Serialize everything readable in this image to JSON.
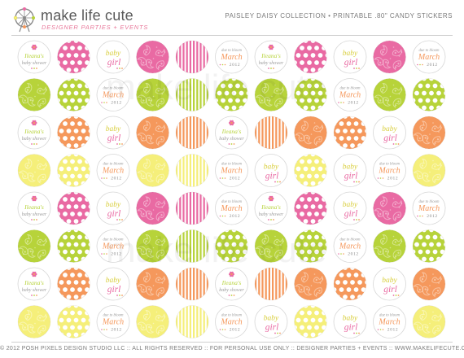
{
  "header": {
    "brand": "make life cute",
    "brand_tagline": "DESIGNER PARTIES + EVENTS",
    "collection_title": "PAISLEY DAISY COLLECTION • PRINTABLE .80\" CANDY STICKERS"
  },
  "sticker_text": {
    "name_line1": "Ileana's",
    "name_line2": "baby shower",
    "baby": "baby",
    "girl": "girl",
    "due": "due to bloom",
    "month": "March",
    "year": "2012"
  },
  "colors": {
    "pink": "#e96aa3",
    "lime": "#b7d33a",
    "orange": "#f5985c",
    "yellow": "#f5ef7a",
    "text_gray": "#8a8a8a"
  },
  "sticker_types": [
    "name",
    "polka-dot",
    "baby-girl",
    "paisley",
    "stripe",
    "due-to-bloom"
  ],
  "sticker_grid": {
    "rows": [
      [
        "name",
        "dot-pink",
        "girl",
        "paisley-pink",
        "stripe-pink",
        "due",
        "name",
        "dot-pink",
        "girl",
        "paisley-pink",
        "due"
      ],
      [
        "paisley-lime",
        "dot-lime",
        "due",
        "paisley-lime",
        "stripe-lime",
        "dot-lime",
        "paisley-lime",
        "dot-lime",
        "due",
        "paisley-lime",
        "dot-lime"
      ],
      [
        "name",
        "dot-orange",
        "girl",
        "paisley-orange",
        "stripe-orange",
        "name",
        "stripe-orange",
        "paisley-orange",
        "dot-orange",
        "girl",
        "paisley-orange"
      ],
      [
        "paisley-yellow",
        "dot-yellow",
        "due",
        "paisley-yellow",
        "stripe-yellow",
        "due",
        "girl",
        "dot-yellow",
        "girl",
        "due",
        "paisley-yellow"
      ],
      [
        "name",
        "dot-pink",
        "girl",
        "paisley-pink",
        "stripe-pink",
        "due",
        "name",
        "dot-pink",
        "girl",
        "paisley-pink",
        "due"
      ],
      [
        "paisley-lime",
        "dot-lime",
        "due",
        "paisley-lime",
        "stripe-lime",
        "dot-lime",
        "paisley-lime",
        "dot-lime",
        "due",
        "paisley-lime",
        "dot-lime"
      ],
      [
        "name",
        "dot-orange",
        "girl",
        "paisley-orange",
        "stripe-orange",
        "name",
        "stripe-orange",
        "paisley-orange",
        "dot-orange",
        "girl",
        "paisley-orange"
      ],
      [
        "paisley-yellow",
        "dot-yellow",
        "due",
        "paisley-yellow",
        "stripe-yellow",
        "due",
        "girl",
        "dot-yellow",
        "girl",
        "due",
        "paisley-yellow"
      ]
    ]
  },
  "watermark": "make life cute",
  "footer": "© 2012 POSH PIXELS DESIGN STUDIO LLC :: ALL RIGHTS RESERVED :: FOR PERSONAL USE ONLY :: DESIGNER PARTIES + EVENTS :: WWW.MAKELIFECUTE.COM"
}
